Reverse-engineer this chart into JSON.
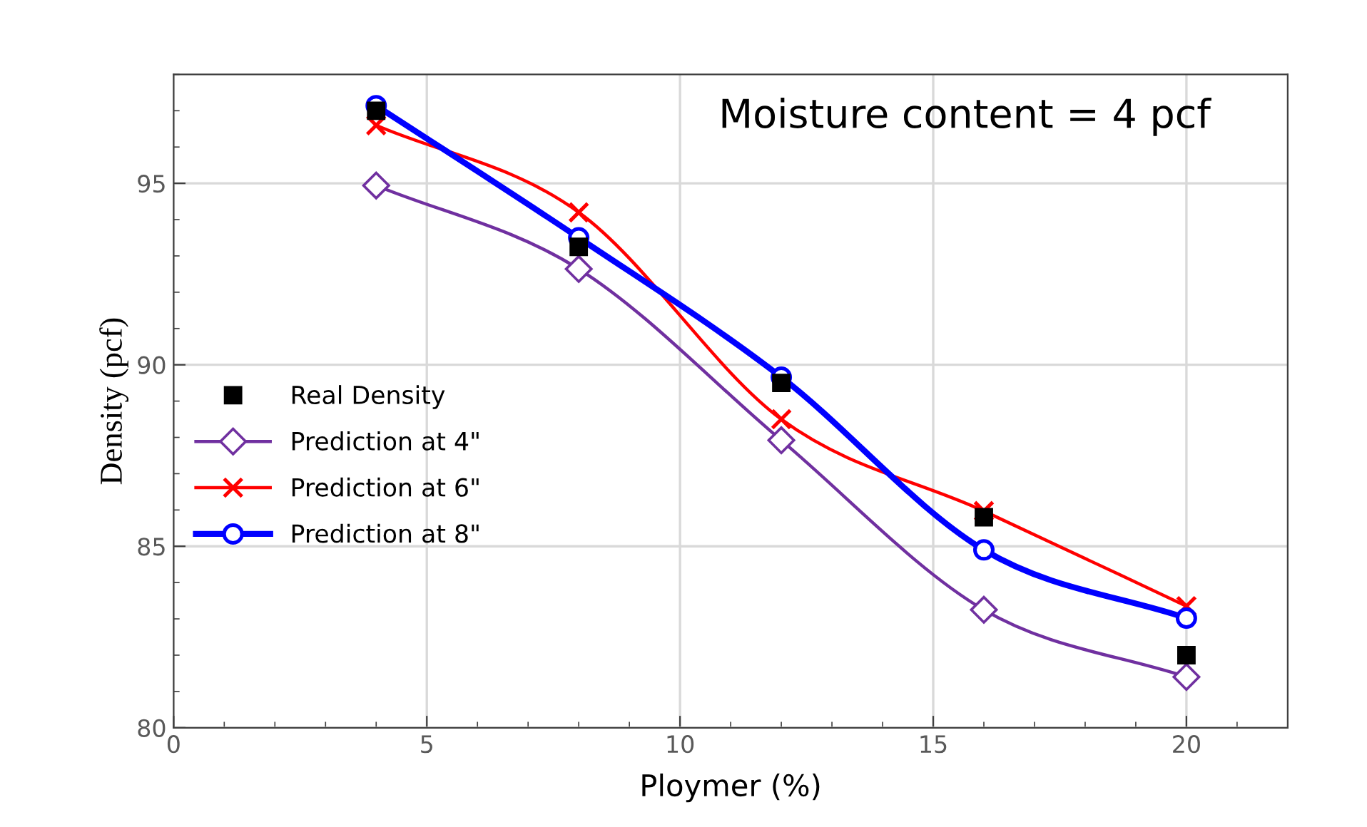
{
  "chart_data": {
    "type": "line",
    "title": "Moisture content = 4 pcf",
    "xlabel": "Ploymer (%)",
    "ylabel": "Density (pcf)",
    "x": [
      4,
      8,
      12,
      16,
      20
    ],
    "series": [
      {
        "name": "Real Density",
        "type": "scatter",
        "color": "#000000",
        "marker": "square",
        "values": [
          97.0,
          93.25,
          89.5,
          85.8,
          82.0
        ]
      },
      {
        "name": "Prediction at 4\"",
        "color": "#7030a0",
        "marker": "diamond",
        "values": [
          94.94,
          92.64,
          87.92,
          83.25,
          81.4
        ]
      },
      {
        "name": "Prediction at 6\"",
        "color": "#ff0000",
        "marker": "cross",
        "values": [
          96.6,
          94.2,
          88.5,
          85.97,
          83.35
        ]
      },
      {
        "name": "Prediction at 8\"",
        "color": "#0000ff",
        "marker": "circle",
        "values": [
          97.14,
          93.5,
          89.66,
          84.9,
          83.02
        ]
      }
    ],
    "xlim": [
      0,
      22
    ],
    "xticks": [
      0,
      5,
      10,
      15,
      20
    ],
    "ylim": [
      80,
      98
    ],
    "yticks": [
      80,
      85,
      90,
      95
    ],
    "grid": true,
    "legend": "left"
  }
}
